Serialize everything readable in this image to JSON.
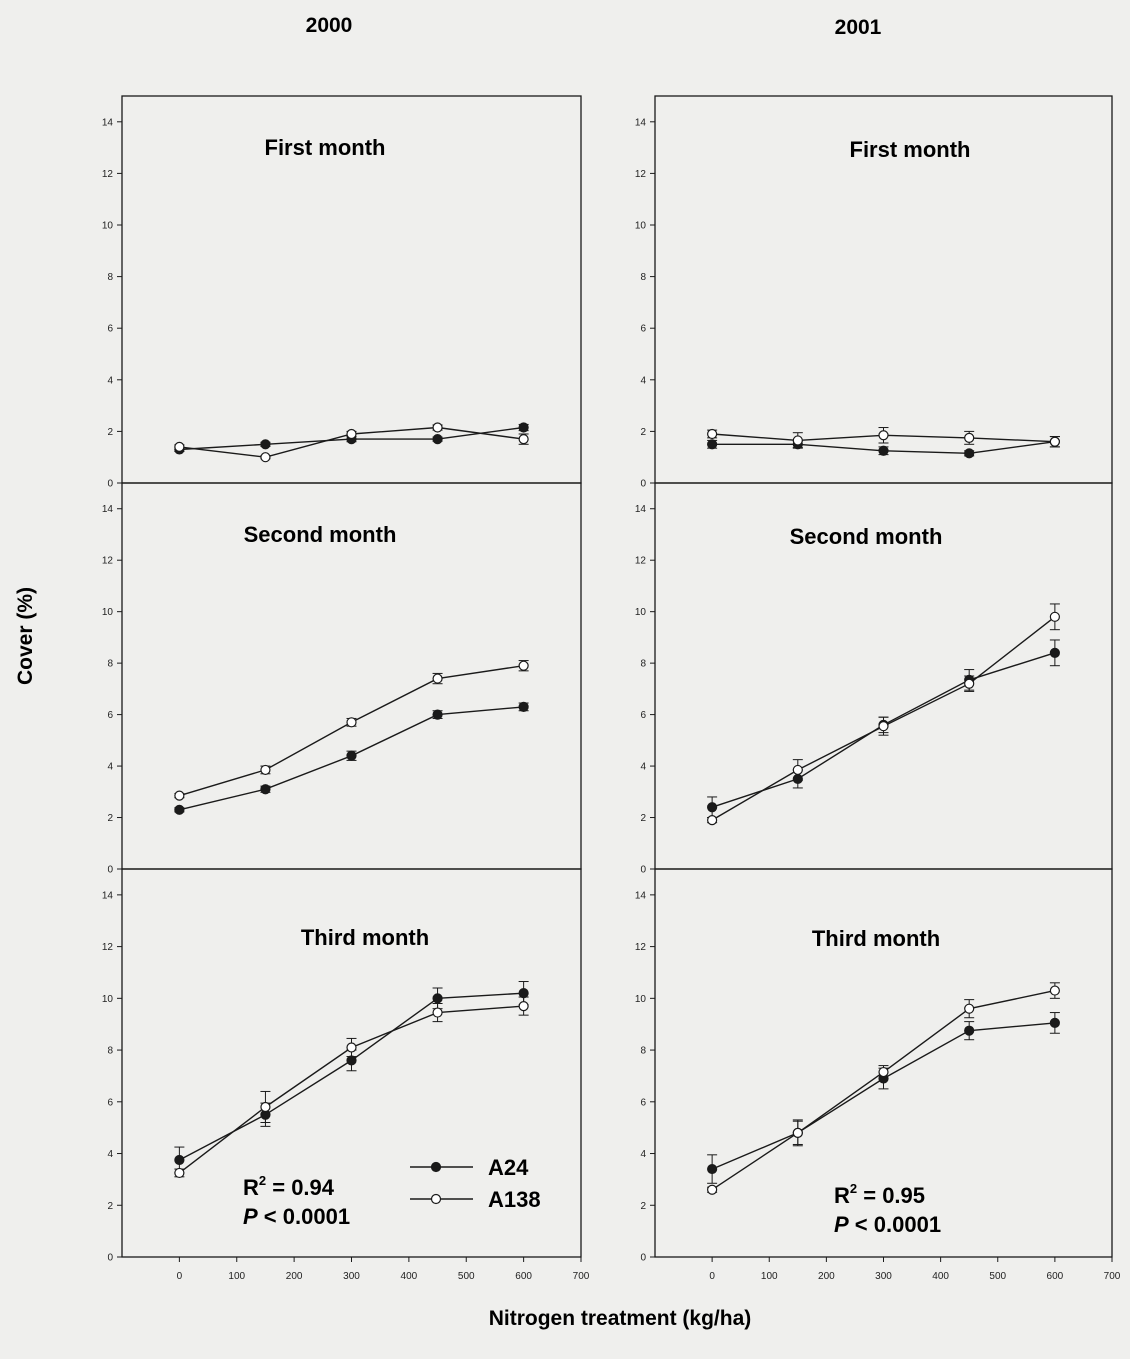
{
  "figure": {
    "ylabel": "Cover (%)",
    "xlabel": "Nitrogen treatment (kg/ha)",
    "columns": [
      "2000",
      "2001"
    ],
    "rows": [
      "First month",
      "Second month",
      "Third month"
    ],
    "colors": {
      "line": "#1a1a1a",
      "open_fill": "#ffffff",
      "background": "#efefed"
    }
  },
  "legend": {
    "position": "inside bottom-left panel, right of stats",
    "items": [
      {
        "label": "A24",
        "marker": "filled-circle"
      },
      {
        "label": "A138",
        "marker": "open-circle"
      }
    ]
  },
  "stats": {
    "2000": {
      "r2_label": "R",
      "r2_sup": "2",
      "r2_value": " = 0.94",
      "p_label": "P",
      "p_value": " < 0.0001"
    },
    "2001": {
      "r2_label": "R",
      "r2_sup": "2",
      "r2_value": " = 0.95",
      "p_label": "P",
      "p_value": " < 0.0001"
    }
  },
  "chart_data": [
    {
      "type": "line",
      "id": "2000-first",
      "title": "First month",
      "column": "2000",
      "x": [
        0,
        150,
        300,
        450,
        600
      ],
      "xlim": [
        -100,
        700
      ],
      "xticks": [
        0,
        100,
        200,
        300,
        400,
        500,
        600,
        700
      ],
      "ylim": [
        0,
        15
      ],
      "yticks": [
        0,
        2,
        4,
        6,
        8,
        10,
        12,
        14
      ],
      "show_xticks": false,
      "series": [
        {
          "name": "A24",
          "marker": "filled",
          "values": [
            1.3,
            1.5,
            1.7,
            1.7,
            2.15
          ],
          "errors": [
            0.08,
            0.08,
            0.1,
            0.08,
            0.12
          ]
        },
        {
          "name": "A138",
          "marker": "open",
          "values": [
            1.4,
            1.0,
            1.9,
            2.15,
            1.7
          ],
          "errors": [
            0.08,
            0.06,
            0.1,
            0.1,
            0.2
          ]
        }
      ]
    },
    {
      "type": "line",
      "id": "2001-first",
      "title": "First month",
      "column": "2001",
      "x": [
        0,
        150,
        300,
        450,
        600
      ],
      "xlim": [
        -100,
        700
      ],
      "xticks": [
        0,
        100,
        200,
        300,
        400,
        500,
        600,
        700
      ],
      "ylim": [
        0,
        15
      ],
      "yticks": [
        0,
        2,
        4,
        6,
        8,
        10,
        12,
        14
      ],
      "show_xticks": false,
      "series": [
        {
          "name": "A24",
          "marker": "filled",
          "values": [
            1.5,
            1.5,
            1.25,
            1.15,
            1.6
          ],
          "errors": [
            0.15,
            0.12,
            0.15,
            0.1,
            0.2
          ]
        },
        {
          "name": "A138",
          "marker": "open",
          "values": [
            1.9,
            1.65,
            1.85,
            1.75,
            1.6
          ],
          "errors": [
            0.15,
            0.3,
            0.3,
            0.25,
            0.2
          ]
        }
      ]
    },
    {
      "type": "line",
      "id": "2000-second",
      "title": "Second month",
      "column": "2000",
      "x": [
        0,
        150,
        300,
        450,
        600
      ],
      "xlim": [
        -100,
        700
      ],
      "xticks": [
        0,
        100,
        200,
        300,
        400,
        500,
        600,
        700
      ],
      "ylim": [
        0,
        15
      ],
      "yticks": [
        0,
        2,
        4,
        6,
        8,
        10,
        12,
        14
      ],
      "show_xticks": false,
      "series": [
        {
          "name": "A24",
          "marker": "filled",
          "values": [
            2.3,
            3.1,
            4.4,
            6.0,
            6.3
          ],
          "errors": [
            0.08,
            0.12,
            0.18,
            0.15,
            0.15
          ]
        },
        {
          "name": "A138",
          "marker": "open",
          "values": [
            2.85,
            3.85,
            5.7,
            7.4,
            7.9
          ],
          "errors": [
            0.08,
            0.15,
            0.15,
            0.2,
            0.2
          ]
        }
      ]
    },
    {
      "type": "line",
      "id": "2001-second",
      "title": "Second month",
      "column": "2001",
      "x": [
        0,
        150,
        300,
        450,
        600
      ],
      "xlim": [
        -100,
        700
      ],
      "xticks": [
        0,
        100,
        200,
        300,
        400,
        500,
        600,
        700
      ],
      "ylim": [
        0,
        15
      ],
      "yticks": [
        0,
        2,
        4,
        6,
        8,
        10,
        12,
        14
      ],
      "show_xticks": false,
      "series": [
        {
          "name": "A24",
          "marker": "filled",
          "values": [
            2.4,
            3.5,
            5.6,
            7.35,
            8.4
          ],
          "errors": [
            0.4,
            0.35,
            0.3,
            0.4,
            0.5
          ]
        },
        {
          "name": "A138",
          "marker": "open",
          "values": [
            1.9,
            3.85,
            5.55,
            7.2,
            9.8
          ],
          "errors": [
            0.1,
            0.4,
            0.35,
            0.3,
            0.5
          ]
        }
      ]
    },
    {
      "type": "line",
      "id": "2000-third",
      "title": "Third month",
      "column": "2000",
      "x": [
        0,
        150,
        300,
        450,
        600
      ],
      "xlim": [
        -100,
        700
      ],
      "xticks": [
        0,
        100,
        200,
        300,
        400,
        500,
        600,
        700
      ],
      "ylim": [
        0,
        15
      ],
      "yticks": [
        0,
        2,
        4,
        6,
        8,
        10,
        12,
        14
      ],
      "show_xticks": true,
      "series": [
        {
          "name": "A24",
          "marker": "filled",
          "values": [
            3.75,
            5.5,
            7.6,
            10.0,
            10.2
          ],
          "errors": [
            0.5,
            0.45,
            0.4,
            0.4,
            0.45
          ]
        },
        {
          "name": "A138",
          "marker": "open",
          "values": [
            3.25,
            5.8,
            8.1,
            9.45,
            9.7
          ],
          "errors": [
            0.15,
            0.6,
            0.35,
            0.35,
            0.35
          ]
        }
      ]
    },
    {
      "type": "line",
      "id": "2001-third",
      "title": "Third month",
      "column": "2001",
      "x": [
        0,
        150,
        300,
        450,
        600
      ],
      "xlim": [
        -100,
        700
      ],
      "xticks": [
        0,
        100,
        200,
        300,
        400,
        500,
        600,
        700
      ],
      "ylim": [
        0,
        15
      ],
      "yticks": [
        0,
        2,
        4,
        6,
        8,
        10,
        12,
        14
      ],
      "show_xticks": true,
      "series": [
        {
          "name": "A24",
          "marker": "filled",
          "values": [
            3.4,
            4.8,
            6.9,
            8.75,
            9.05
          ],
          "errors": [
            0.55,
            0.45,
            0.4,
            0.35,
            0.4
          ]
        },
        {
          "name": "A138",
          "marker": "open",
          "values": [
            2.6,
            4.8,
            7.15,
            9.6,
            10.3
          ],
          "errors": [
            0.1,
            0.5,
            0.25,
            0.35,
            0.3
          ]
        }
      ]
    }
  ]
}
